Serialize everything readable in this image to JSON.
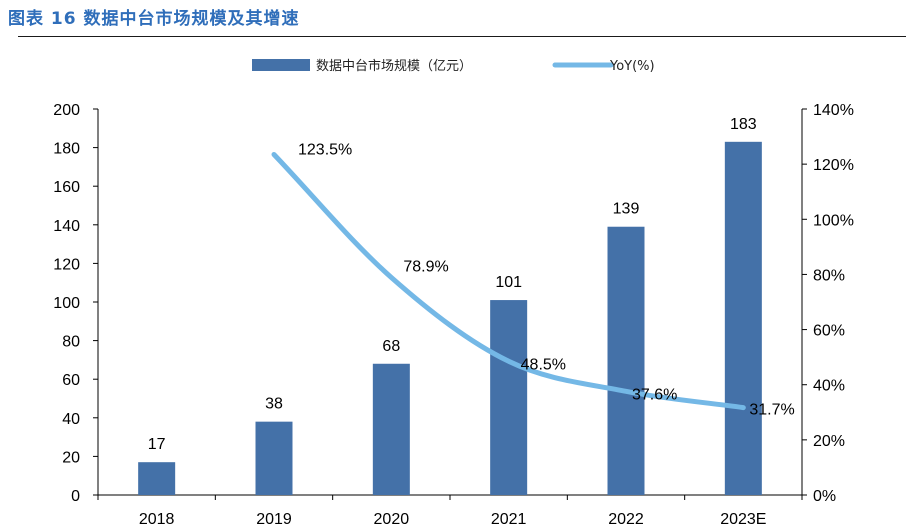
{
  "figure": {
    "title": "图表 16 数据中台市场规模及其增速"
  },
  "chart_data": {
    "type": "bar",
    "categories": [
      "2018",
      "2019",
      "2020",
      "2021",
      "2022",
      "2023E"
    ],
    "series": [
      {
        "name": "数据中台市场规模（亿元）",
        "type": "bar",
        "axis": "left",
        "values": [
          17,
          38,
          68,
          101,
          139,
          183
        ],
        "labels": [
          "17",
          "38",
          "68",
          "101",
          "139",
          "183"
        ],
        "color": "#4471a8"
      },
      {
        "name": "YoY(%)",
        "type": "line",
        "axis": "right",
        "values": [
          null,
          123.5,
          78.9,
          48.5,
          37.6,
          31.7
        ],
        "labels": [
          "",
          "123.5%",
          "78.9%",
          "48.5%",
          "37.6%",
          "31.7%"
        ],
        "color": "#74b8e6"
      }
    ],
    "y_left": {
      "min": 0,
      "max": 200,
      "ticks": [
        "0",
        "20",
        "40",
        "60",
        "80",
        "100",
        "120",
        "140",
        "160",
        "180",
        "200"
      ]
    },
    "y_right": {
      "min": 0,
      "max": 140,
      "ticks": [
        "0%",
        "20%",
        "40%",
        "60%",
        "80%",
        "100%",
        "120%",
        "140%"
      ]
    },
    "legend_position": "top",
    "grid": false
  }
}
